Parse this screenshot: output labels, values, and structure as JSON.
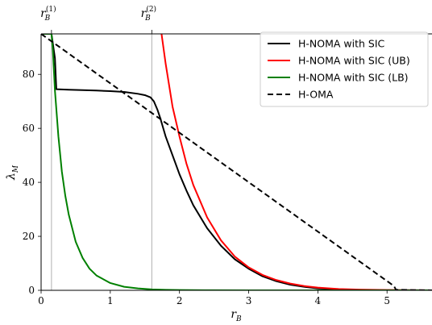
{
  "chart_data": {
    "type": "line",
    "xlabel": "r",
    "xlabel_sub": "B",
    "ylabel": "λ",
    "ylabel_sub": "M",
    "xlim": [
      0,
      5.65
    ],
    "ylim": [
      0,
      95
    ],
    "xticks": [
      0,
      1,
      2,
      3,
      4,
      5
    ],
    "yticks": [
      0,
      20,
      40,
      60,
      80
    ],
    "grid": false,
    "legend_position": "top-right",
    "vlines": [
      {
        "x": 0.15,
        "label": "r",
        "label_sub": "B",
        "label_sup": "(1)"
      },
      {
        "x": 1.6,
        "label": "r",
        "label_sub": "B",
        "label_sup": "(2)"
      }
    ],
    "series": [
      {
        "name": "H-NOMA with SIC",
        "color": "#000000",
        "dash": "solid",
        "x": [
          0,
          0.15,
          0.2,
          0.22,
          0.4,
          0.8,
          1.0,
          1.2,
          1.4,
          1.5,
          1.58,
          1.63,
          1.68,
          1.72,
          1.8,
          1.9,
          2.0,
          2.1,
          2.2,
          2.4,
          2.6,
          2.8,
          3.0,
          3.2,
          3.4,
          3.6,
          3.8,
          4.0,
          4.5,
          5.0,
          5.65
        ],
        "y": [
          95,
          95,
          86,
          74.5,
          74.3,
          74,
          73.8,
          73.5,
          72.8,
          72.3,
          71.5,
          70,
          67,
          64,
          57,
          50,
          43,
          37,
          31.5,
          23,
          16.5,
          11.5,
          8,
          5.2,
          3.4,
          2.1,
          1.3,
          0.7,
          0.2,
          0.05,
          0
        ]
      },
      {
        "name": "H-NOMA with SIC (UB)",
        "color": "#ff0000",
        "dash": "solid",
        "x": [
          1.73,
          1.8,
          1.9,
          2.0,
          2.1,
          2.2,
          2.4,
          2.6,
          2.8,
          3.0,
          3.2,
          3.4,
          3.6,
          3.8,
          4.0,
          4.3,
          4.6,
          5.0,
          5.65
        ],
        "y": [
          97,
          84,
          68,
          57,
          47,
          39,
          27,
          18.5,
          12.5,
          8.5,
          5.7,
          3.8,
          2.5,
          1.6,
          1.0,
          0.5,
          0.25,
          0.1,
          0
        ]
      },
      {
        "name": "H-NOMA with SIC (LB)",
        "color": "#008000",
        "dash": "solid",
        "x": [
          0,
          0.15,
          0.17,
          0.2,
          0.25,
          0.3,
          0.35,
          0.4,
          0.5,
          0.6,
          0.7,
          0.8,
          1.0,
          1.2,
          1.4,
          1.6,
          1.8,
          2.0,
          2.5,
          3.0,
          4.0,
          5.0,
          5.65
        ],
        "y": [
          95,
          95,
          89,
          74,
          57,
          44,
          35,
          28,
          18,
          12,
          8,
          5.5,
          2.7,
          1.3,
          0.7,
          0.35,
          0.18,
          0.1,
          0.03,
          0.01,
          0,
          0,
          0
        ]
      },
      {
        "name": "H-OMA",
        "color": "#000000",
        "dash": "dashed",
        "x": [
          0,
          5.1,
          5.13,
          5.65
        ],
        "y": [
          95,
          1.6,
          0.2,
          0
        ]
      }
    ]
  }
}
